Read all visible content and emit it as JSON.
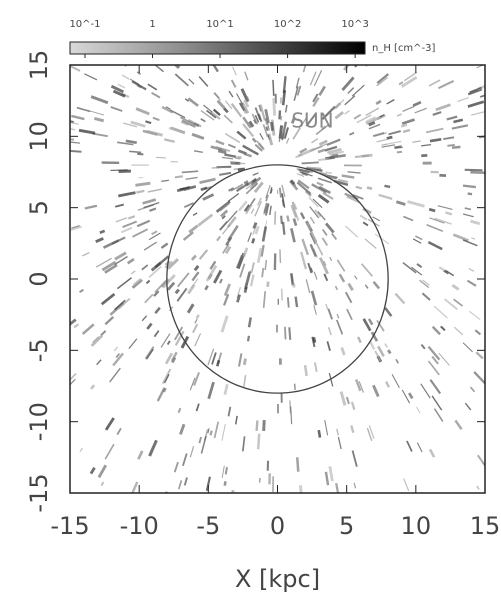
{
  "chart_data": {
    "type": "heatmap",
    "xlabel": "X [kpc]",
    "xlim": [
      -15,
      15
    ],
    "ylim": [
      -15,
      15
    ],
    "xticks": [
      -15,
      -10,
      -5,
      0,
      5,
      10,
      15
    ],
    "yticks": [
      -15,
      -10,
      -5,
      0,
      5,
      10,
      15
    ],
    "annotations": [
      {
        "text": "SUN",
        "x": 0,
        "y": 11
      }
    ],
    "circle": {
      "center": [
        0,
        0
      ],
      "radius": 8
    },
    "colorbar": {
      "label": "n_H [cm^-3]",
      "log": true,
      "lim": [
        0.06,
        1400
      ],
      "ticks": [
        {
          "value": 0.1,
          "label": "10^-1"
        },
        1,
        {
          "value": 10,
          "label": "10^1"
        },
        {
          "value": 100,
          "label": "10^2"
        },
        {
          "value": 1000,
          "label": "10^3"
        }
      ]
    }
  }
}
